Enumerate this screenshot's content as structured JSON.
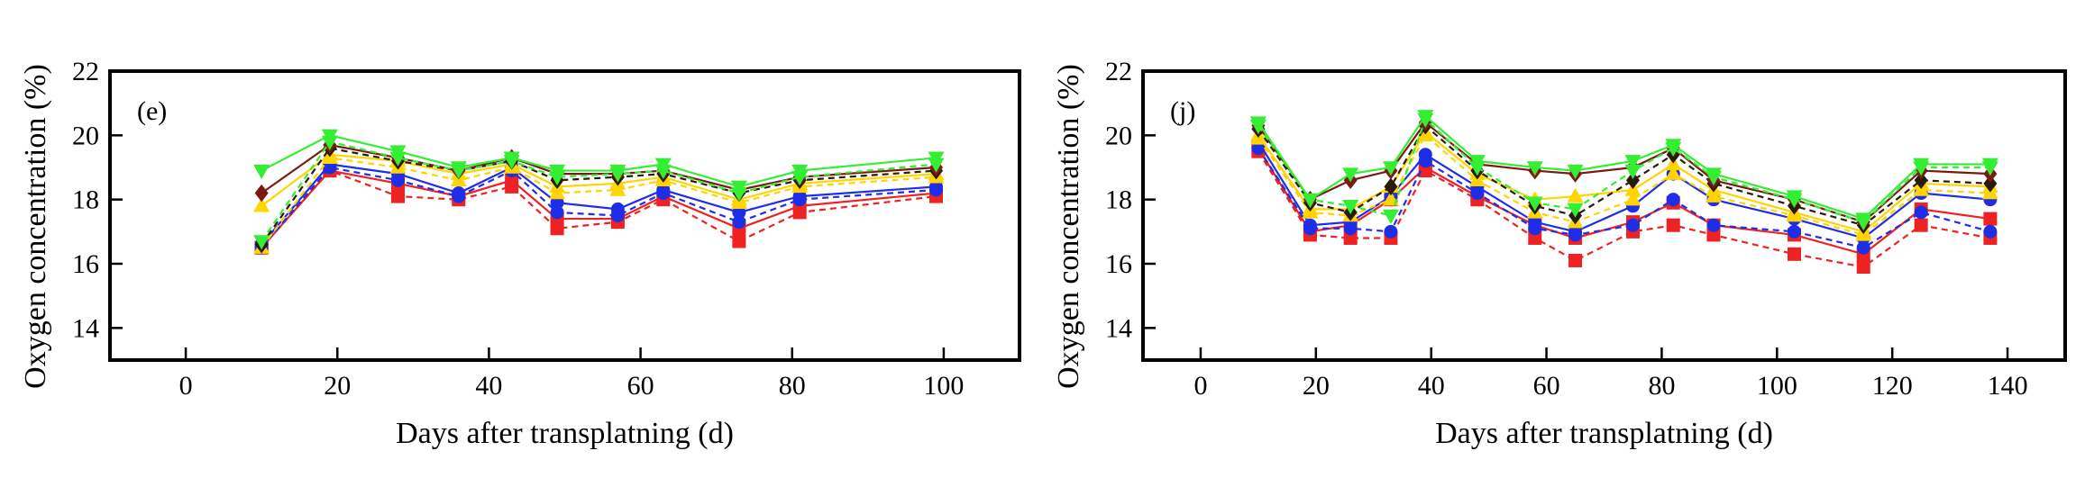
{
  "chart_data": [
    {
      "type": "line",
      "panel_label": "(e)",
      "xlabel": "Days after transplatning (d)",
      "ylabel": "Oxygen concentration (%)",
      "xlim": [
        -10,
        110
      ],
      "ylim": [
        13,
        22
      ],
      "xticks": [
        0,
        20,
        40,
        60,
        80,
        100
      ],
      "yticks": [
        14,
        16,
        18,
        20,
        22
      ],
      "x": [
        10,
        19,
        28,
        36,
        43,
        49,
        57,
        63,
        73,
        81,
        99
      ],
      "series": [
        {
          "color": "#33ee33",
          "marker": "triangle-down",
          "dash": "solid",
          "values": [
            18.9,
            20.0,
            19.5,
            19.0,
            19.3,
            18.9,
            18.9,
            19.1,
            18.4,
            18.9,
            19.3
          ]
        },
        {
          "color": "#33ee33",
          "marker": "triangle-down",
          "dash": "dashed",
          "values": [
            16.7,
            19.8,
            19.3,
            18.9,
            19.2,
            18.7,
            18.8,
            18.9,
            18.2,
            18.7,
            19.1
          ]
        },
        {
          "color": "#7a1a12",
          "marker": "diamond",
          "dash": "solid",
          "values": [
            18.2,
            19.7,
            19.3,
            18.9,
            19.3,
            18.8,
            18.8,
            18.9,
            18.3,
            18.7,
            19.0
          ]
        },
        {
          "color": "#2a1a0a",
          "marker": "diamond",
          "dash": "dashed",
          "values": [
            16.6,
            19.6,
            19.2,
            18.9,
            19.2,
            18.6,
            18.7,
            18.8,
            18.2,
            18.6,
            18.9
          ]
        },
        {
          "color": "#ffd400",
          "marker": "triangle-up",
          "dash": "solid",
          "values": [
            17.8,
            19.4,
            19.2,
            18.8,
            19.1,
            18.4,
            18.5,
            18.7,
            18.0,
            18.5,
            18.8
          ]
        },
        {
          "color": "#ffd400",
          "marker": "triangle-up",
          "dash": "dashed",
          "values": [
            16.5,
            19.3,
            19.0,
            18.6,
            19.0,
            18.2,
            18.3,
            18.6,
            17.9,
            18.4,
            18.7
          ]
        },
        {
          "color": "#1e2ee6",
          "marker": "circle",
          "dash": "solid",
          "values": [
            16.6,
            19.1,
            18.8,
            18.2,
            19.0,
            17.9,
            17.7,
            18.3,
            17.6,
            18.1,
            18.4
          ]
        },
        {
          "color": "#1e2ee6",
          "marker": "circle",
          "dash": "dashed",
          "values": [
            16.5,
            19.0,
            18.6,
            18.1,
            18.9,
            17.6,
            17.5,
            18.2,
            17.3,
            18.0,
            18.3
          ]
        },
        {
          "color": "#ee2222",
          "marker": "square",
          "dash": "solid",
          "values": [
            16.5,
            18.9,
            18.5,
            18.1,
            18.6,
            17.4,
            17.4,
            18.1,
            17.1,
            17.8,
            18.2
          ]
        },
        {
          "color": "#ee2222",
          "marker": "square",
          "dash": "dashed",
          "values": [
            16.5,
            18.9,
            18.1,
            18.0,
            18.4,
            17.1,
            17.3,
            18.0,
            16.7,
            17.6,
            18.1
          ]
        }
      ]
    },
    {
      "type": "line",
      "panel_label": "(j)",
      "xlabel": "Days after transplatning (d)",
      "ylabel": "Oxygen concentration (%)",
      "xlim": [
        -10,
        150
      ],
      "ylim": [
        13,
        22
      ],
      "xticks": [
        0,
        20,
        40,
        60,
        80,
        100,
        120,
        140
      ],
      "yticks": [
        14,
        16,
        18,
        20,
        22
      ],
      "x": [
        10,
        19,
        26,
        33,
        39,
        48,
        58,
        65,
        75,
        82,
        89,
        103,
        115,
        125,
        137
      ],
      "series": [
        {
          "color": "#33ee33",
          "marker": "triangle-down",
          "dash": "solid",
          "values": [
            20.4,
            18.0,
            18.8,
            19.0,
            20.6,
            19.2,
            19.0,
            18.9,
            19.2,
            19.7,
            18.8,
            18.1,
            17.4,
            19.1,
            19.1
          ]
        },
        {
          "color": "#33ee33",
          "marker": "triangle-down",
          "dash": "dashed",
          "values": [
            20.3,
            18.0,
            17.8,
            17.5,
            20.5,
            19.0,
            17.9,
            17.7,
            18.9,
            19.6,
            18.7,
            18.0,
            17.3,
            19.0,
            19.0
          ]
        },
        {
          "color": "#7a1a12",
          "marker": "diamond",
          "dash": "solid",
          "values": [
            20.3,
            18.0,
            18.6,
            18.9,
            20.4,
            19.1,
            18.9,
            18.8,
            19.0,
            19.6,
            18.6,
            18.0,
            17.3,
            18.9,
            18.8
          ]
        },
        {
          "color": "#2a1a0a",
          "marker": "diamond",
          "dash": "dashed",
          "values": [
            20.2,
            17.9,
            17.6,
            18.4,
            20.3,
            18.9,
            17.8,
            17.5,
            18.6,
            19.4,
            18.5,
            17.8,
            17.2,
            18.6,
            18.5
          ]
        },
        {
          "color": "#ffd400",
          "marker": "triangle-up",
          "dash": "solid",
          "values": [
            20.0,
            17.7,
            17.7,
            18.4,
            20.1,
            18.8,
            18.0,
            18.1,
            18.3,
            19.1,
            18.3,
            17.6,
            17.0,
            18.5,
            18.4
          ]
        },
        {
          "color": "#ffd400",
          "marker": "triangle-up",
          "dash": "dashed",
          "values": [
            19.9,
            17.6,
            17.5,
            18.0,
            20.0,
            18.6,
            17.6,
            17.3,
            18.0,
            18.8,
            18.1,
            17.5,
            16.9,
            18.3,
            18.2
          ]
        },
        {
          "color": "#1e2ee6",
          "marker": "circle",
          "dash": "solid",
          "values": [
            19.8,
            17.2,
            17.3,
            18.1,
            19.4,
            18.4,
            17.3,
            17.0,
            17.8,
            18.8,
            18.0,
            17.4,
            16.8,
            18.2,
            18.0
          ]
        },
        {
          "color": "#1e2ee6",
          "marker": "circle",
          "dash": "dashed",
          "values": [
            19.6,
            17.1,
            17.1,
            17.0,
            19.2,
            18.2,
            17.1,
            16.9,
            17.2,
            18.0,
            17.2,
            17.0,
            16.5,
            17.6,
            17.0
          ]
        },
        {
          "color": "#ee2222",
          "marker": "square",
          "dash": "solid",
          "values": [
            19.6,
            17.0,
            17.2,
            18.0,
            19.0,
            18.1,
            17.2,
            16.8,
            17.3,
            17.9,
            17.2,
            16.9,
            16.3,
            17.7,
            17.4
          ]
        },
        {
          "color": "#ee2222",
          "marker": "square",
          "dash": "dashed",
          "values": [
            19.5,
            16.9,
            16.8,
            16.8,
            18.9,
            18.0,
            16.8,
            16.1,
            17.0,
            17.2,
            16.9,
            16.3,
            15.9,
            17.2,
            16.8
          ]
        }
      ]
    }
  ]
}
